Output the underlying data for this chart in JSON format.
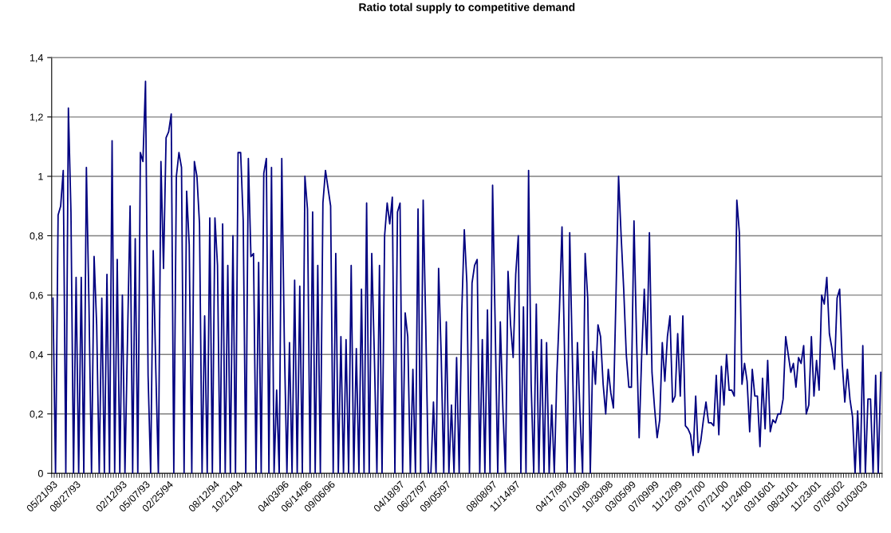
{
  "chart_data": {
    "type": "line",
    "title": "Ratio total supply to competitive demand",
    "categories": [
      "05/21/93",
      null,
      null,
      null,
      null,
      null,
      null,
      null,
      null,
      "08/27/93",
      null,
      null,
      null,
      null,
      null,
      null,
      null,
      null,
      null,
      null,
      null,
      null,
      null,
      null,
      null,
      null,
      null,
      "02/12/93",
      null,
      null,
      null,
      null,
      null,
      null,
      null,
      null,
      "05/07/93",
      null,
      null,
      null,
      null,
      null,
      null,
      null,
      null,
      "02/25/94",
      null,
      null,
      null,
      null,
      null,
      null,
      null,
      null,
      null,
      null,
      null,
      null,
      null,
      null,
      null,
      null,
      null,
      "08/12/94",
      null,
      null,
      null,
      null,
      null,
      null,
      null,
      null,
      "10/21/94",
      null,
      null,
      null,
      null,
      null,
      null,
      null,
      null,
      null,
      null,
      null,
      null,
      null,
      null,
      null,
      null,
      null,
      "04/03/96",
      null,
      null,
      null,
      null,
      null,
      null,
      null,
      null,
      "06/14/96",
      null,
      null,
      null,
      null,
      null,
      null,
      null,
      null,
      "09/06/96",
      null,
      null,
      null,
      null,
      null,
      null,
      null,
      null,
      null,
      null,
      null,
      null,
      null,
      null,
      null,
      null,
      null,
      null,
      null,
      null,
      null,
      null,
      null,
      null,
      null,
      null,
      "04/18/97",
      null,
      null,
      null,
      null,
      null,
      null,
      null,
      null,
      "06/27/97",
      null,
      null,
      null,
      null,
      null,
      null,
      null,
      null,
      "09/05/97",
      null,
      null,
      null,
      null,
      null,
      null,
      null,
      null,
      null,
      null,
      null,
      null,
      null,
      null,
      null,
      null,
      null,
      "08/08/97",
      null,
      null,
      null,
      null,
      null,
      null,
      null,
      null,
      "11/14/97",
      null,
      null,
      null,
      null,
      null,
      null,
      null,
      null,
      null,
      null,
      null,
      null,
      null,
      null,
      null,
      null,
      null,
      "04/17/98",
      null,
      null,
      null,
      null,
      null,
      null,
      null,
      null,
      "07/10/98",
      null,
      null,
      null,
      null,
      null,
      null,
      null,
      null,
      "10/30/98",
      null,
      null,
      null,
      null,
      null,
      null,
      null,
      null,
      "03/05/99",
      null,
      null,
      null,
      null,
      null,
      null,
      null,
      null,
      "07/09/99",
      null,
      null,
      null,
      null,
      null,
      null,
      null,
      null,
      "11/12/99",
      null,
      null,
      null,
      null,
      null,
      null,
      null,
      null,
      "03/17/00",
      null,
      null,
      null,
      null,
      null,
      null,
      null,
      null,
      "07/21/00",
      null,
      null,
      null,
      null,
      null,
      null,
      null,
      null,
      "11/24/00",
      null,
      null,
      null,
      null,
      null,
      null,
      null,
      null,
      "03/16/01",
      null,
      null,
      null,
      null,
      null,
      null,
      null,
      null,
      "08/31/01",
      null,
      null,
      null,
      null,
      null,
      null,
      null,
      null,
      "11/23/01",
      null,
      null,
      null,
      null,
      null,
      null,
      null,
      null,
      "07/05/02",
      null,
      null,
      null,
      null,
      null,
      null,
      null,
      null,
      "01/03/03",
      null,
      null,
      null,
      null,
      null,
      null,
      null
    ],
    "series": [
      {
        "color": "#000080",
        "values": [
          0.59,
          0,
          0.87,
          0.9,
          1.02,
          0,
          1.23,
          0.88,
          0,
          0.66,
          0,
          0.66,
          0,
          1.03,
          0.57,
          0,
          0.73,
          0.5,
          0,
          0.59,
          0,
          0.67,
          0,
          1.12,
          0,
          0.72,
          0,
          0.6,
          0,
          0.45,
          0.9,
          0,
          0.79,
          0,
          1.08,
          1.05,
          1.32,
          0.33,
          0,
          0.75,
          0.35,
          0,
          1.05,
          0.69,
          1.13,
          1.15,
          1.21,
          0,
          1.0,
          1.08,
          1.03,
          0,
          0.95,
          0.77,
          0,
          1.05,
          1.0,
          0.84,
          0,
          0.53,
          0,
          0.86,
          0,
          0.86,
          0.7,
          0,
          0.84,
          0,
          0.7,
          0,
          0.8,
          0,
          1.08,
          1.08,
          0.85,
          0,
          1.06,
          0.73,
          0.74,
          0,
          0.71,
          0,
          1.01,
          1.06,
          0,
          1.03,
          0,
          0.28,
          0,
          1.06,
          0.44,
          0,
          0.44,
          0,
          0.65,
          0,
          0.63,
          0,
          1.0,
          0.89,
          0,
          0.88,
          0,
          0.7,
          0,
          0.91,
          1.02,
          0.96,
          0.9,
          0,
          0.74,
          0,
          0.46,
          0,
          0.45,
          0,
          0.7,
          0,
          0.42,
          0,
          0.62,
          0,
          0.91,
          0,
          0.74,
          0.4,
          0,
          0.7,
          0,
          0.8,
          0.91,
          0.84,
          0.93,
          0,
          0.88,
          0.91,
          0,
          0.54,
          0.46,
          0,
          0.35,
          0,
          0.89,
          0,
          0.92,
          0.5,
          0,
          0,
          0.24,
          0,
          0.69,
          0.4,
          0,
          0.51,
          0,
          0.23,
          0,
          0.39,
          0,
          0.54,
          0.82,
          0.64,
          0,
          0.64,
          0.7,
          0.72,
          0,
          0.45,
          0,
          0.55,
          0,
          0.97,
          0.5,
          0,
          0.51,
          0.22,
          0,
          0.68,
          0.5,
          0.39,
          0.67,
          0.8,
          0,
          0.56,
          0,
          1.02,
          0.3,
          0,
          0.57,
          0,
          0.45,
          0,
          0.44,
          0,
          0.23,
          0,
          0.33,
          0.55,
          0.83,
          0.4,
          0,
          0.81,
          0.4,
          0,
          0.44,
          0.2,
          0,
          0.74,
          0.59,
          0,
          0.41,
          0.3,
          0.5,
          0.46,
          0.3,
          0.2,
          0.35,
          0.27,
          0.22,
          0.6,
          1.0,
          0.8,
          0.62,
          0.4,
          0.29,
          0.29,
          0.85,
          0.45,
          0.12,
          0.4,
          0.62,
          0.4,
          0.81,
          0.34,
          0.22,
          0.12,
          0.18,
          0.44,
          0.31,
          0.46,
          0.53,
          0.24,
          0.26,
          0.47,
          0.26,
          0.53,
          0.16,
          0.15,
          0.13,
          0.06,
          0.26,
          0.07,
          0.11,
          0.18,
          0.24,
          0.17,
          0.17,
          0.16,
          0.33,
          0.13,
          0.36,
          0.23,
          0.4,
          0.28,
          0.28,
          0.26,
          0.92,
          0.81,
          0.3,
          0.37,
          0.31,
          0.14,
          0.35,
          0.26,
          0.26,
          0.09,
          0.32,
          0.15,
          0.38,
          0.14,
          0.18,
          0.17,
          0.2,
          0.2,
          0.25,
          0.46,
          0.4,
          0.34,
          0.37,
          0.29,
          0.39,
          0.37,
          0.43,
          0.2,
          0.23,
          0.46,
          0.26,
          0.38,
          0.28,
          0.6,
          0.57,
          0.66,
          0.47,
          0.42,
          0.35,
          0.59,
          0.62,
          0.37,
          0.24,
          0.35,
          0.25,
          0.19,
          0,
          0.21,
          0,
          0.43,
          0,
          0.25,
          0.25,
          0,
          0.33,
          0,
          0.34
        ]
      }
    ],
    "ylim": [
      0,
      1.4
    ],
    "yticks": [
      0,
      {
        "value": 0.2,
        "label": "0,2"
      },
      {
        "value": 0.4,
        "label": "0,4"
      },
      {
        "value": 0.6,
        "label": "0,6"
      },
      {
        "value": 0.8,
        "label": "0,8"
      },
      1,
      {
        "value": 1.2,
        "label": "1,2"
      },
      {
        "value": 1.4,
        "label": "1,4"
      }
    ],
    "grid": "y"
  }
}
